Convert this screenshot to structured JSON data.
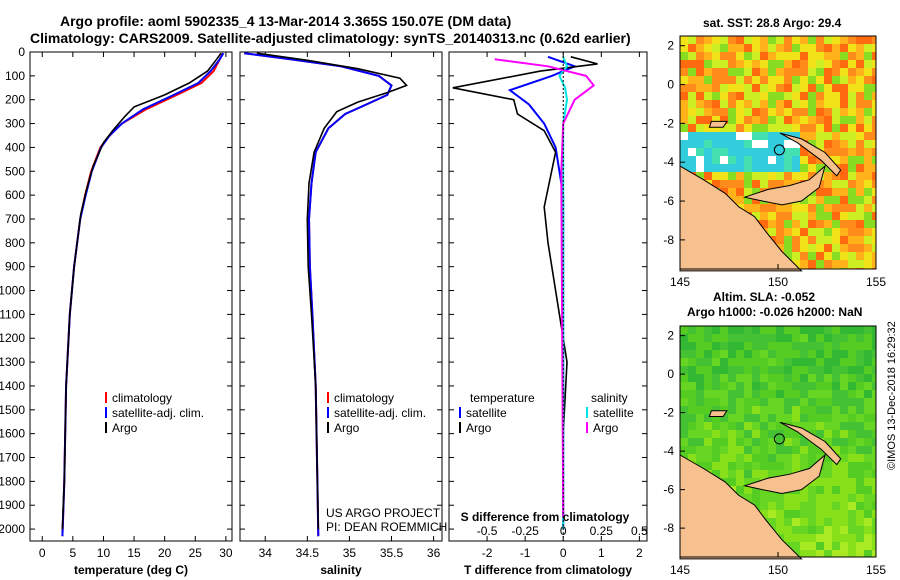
{
  "header": {
    "title_line1": "Argo profile: aoml 5902335_4 13-Mar-2014 3.365S 150.07E (DM data)",
    "title_line2": "Climatology: CARS2009. Satellite-adjusted climatology: synTS_20140313.nc (0.62d earlier)"
  },
  "colors": {
    "climatology": "#ff0000",
    "satellite": "#0000ff",
    "argo": "#000000",
    "sat_salinity": "#00e5e5",
    "argo_salinity": "#ff00ff",
    "land": "#f7c08f"
  },
  "credits": {
    "project": "US ARGO PROJECT",
    "pi": "PI: DEAN ROEMMICH",
    "stamp": "©IMOS 13-Dec-2018 16:29:32"
  },
  "chart_data": [
    {
      "type": "line",
      "id": "temperature",
      "xlabel": "temperature (deg C)",
      "ylabel": "",
      "xlim": [
        -2,
        31
      ],
      "ylim": [
        2050,
        0
      ],
      "xticks": [
        0,
        5,
        10,
        15,
        20,
        25,
        30
      ],
      "yticks": [
        0,
        100,
        200,
        300,
        400,
        500,
        600,
        700,
        800,
        900,
        1000,
        1100,
        1200,
        1300,
        1400,
        1500,
        1600,
        1700,
        1800,
        1900,
        2000
      ],
      "legend": [
        "climatology",
        "satellite-adj. clim.",
        "Argo"
      ],
      "series": [
        {
          "name": "climatology",
          "color": "#ff0000",
          "x": [
            29.5,
            29,
            28,
            26,
            22,
            17,
            13,
            11,
            9.5,
            8,
            7,
            6.2,
            5.2,
            4.5,
            3.9,
            3.6,
            3.3
          ],
          "y": [
            5,
            30,
            80,
            130,
            180,
            240,
            300,
            350,
            400,
            500,
            600,
            700,
            900,
            1100,
            1400,
            1800,
            2030
          ]
        },
        {
          "name": "satellite-adj. clim.",
          "color": "#0000ff",
          "x": [
            29.6,
            29,
            27.5,
            25.5,
            21.5,
            16.5,
            13,
            11,
            9.6,
            8.1,
            7.1,
            6.2,
            5.2,
            4.5,
            3.9,
            3.6,
            3.3
          ],
          "y": [
            5,
            30,
            80,
            130,
            180,
            240,
            300,
            350,
            400,
            500,
            600,
            700,
            900,
            1100,
            1400,
            1800,
            2030
          ]
        },
        {
          "name": "Argo",
          "color": "#000000",
          "x": [
            29.2,
            28.5,
            27,
            24,
            20,
            15,
            13.5,
            11.5,
            10,
            8.3,
            7.2,
            6.3,
            5.2,
            4.5,
            3.9,
            3.6,
            3.3
          ],
          "y": [
            5,
            30,
            80,
            130,
            180,
            230,
            270,
            330,
            380,
            480,
            580,
            680,
            900,
            1100,
            1400,
            1800,
            2000
          ]
        }
      ]
    },
    {
      "type": "line",
      "id": "salinity",
      "xlabel": "salinity",
      "xlim": [
        33.7,
        36.1
      ],
      "ylim": [
        2050,
        0
      ],
      "xticks": [
        34,
        34.5,
        35,
        35.5,
        36
      ],
      "legend": [
        "climatology",
        "satellite-adj. clim.",
        "Argo"
      ],
      "series": [
        {
          "name": "climatology",
          "color": "#ff0000",
          "x": [
            33.75,
            34.3,
            34.9,
            35.35,
            35.5,
            35.45,
            35.2,
            34.95,
            34.75,
            34.6,
            34.55,
            34.52,
            34.53,
            34.56,
            34.6,
            34.62,
            34.63
          ],
          "y": [
            5,
            30,
            60,
            100,
            140,
            180,
            220,
            260,
            320,
            420,
            550,
            700,
            900,
            1100,
            1400,
            1800,
            2030
          ]
        },
        {
          "name": "satellite-adj. clim.",
          "color": "#0000ff",
          "x": [
            33.75,
            34.3,
            34.9,
            35.35,
            35.5,
            35.45,
            35.2,
            34.95,
            34.75,
            34.6,
            34.55,
            34.52,
            34.53,
            34.56,
            34.6,
            34.62,
            34.63
          ],
          "y": [
            5,
            30,
            60,
            100,
            140,
            180,
            220,
            260,
            320,
            420,
            550,
            700,
            900,
            1100,
            1400,
            1800,
            2030
          ]
        },
        {
          "name": "Argo",
          "color": "#000000",
          "x": [
            33.9,
            34.5,
            35.1,
            35.6,
            35.68,
            35.45,
            35.1,
            34.85,
            34.7,
            34.58,
            34.52,
            34.5,
            34.51,
            34.55,
            34.6,
            34.62,
            34.63
          ],
          "y": [
            5,
            35,
            70,
            110,
            140,
            170,
            210,
            250,
            320,
            420,
            550,
            700,
            900,
            1100,
            1400,
            1800,
            2000
          ]
        }
      ]
    },
    {
      "type": "line",
      "id": "differences",
      "xlabel": "T difference from climatology",
      "xlabel_top": "S difference from climatology",
      "xlim": [
        -3,
        2.2
      ],
      "ylim": [
        2050,
        0
      ],
      "xticks": [
        -2,
        -1,
        0,
        1,
        2
      ],
      "xticks_top": [
        "-0.5",
        "-0.25",
        "0",
        "0.25",
        "0.5"
      ],
      "legend_left_title": "temperature",
      "legend_right_title": "salinity",
      "legend_left": [
        "satellite",
        "Argo"
      ],
      "legend_right": [
        "satellite",
        "Argo"
      ],
      "series": [
        {
          "name": "T satellite",
          "color": "#0000ff",
          "x": [
            -0.4,
            0.3,
            -0.3,
            -1.4,
            -0.9,
            -0.5,
            -0.2,
            0,
            0
          ],
          "y": [
            20,
            60,
            100,
            160,
            220,
            300,
            400,
            600,
            2000
          ]
        },
        {
          "name": "T Argo",
          "color": "#000000",
          "x": [
            0.2,
            0.9,
            -0.6,
            -2.9,
            -1.3,
            -1.2,
            -0.5,
            -0.2,
            -0.5,
            -0.4,
            -0.2,
            0.1,
            0,
            0
          ],
          "y": [
            20,
            50,
            80,
            150,
            200,
            260,
            330,
            420,
            650,
            800,
            1000,
            1300,
            1600,
            1950
          ]
        },
        {
          "name": "S satellite",
          "color": "#00e5e5",
          "x": [
            0,
            0.1,
            -0.1,
            0.05,
            0.1,
            0,
            0,
            0
          ],
          "y": [
            20,
            60,
            100,
            150,
            200,
            300,
            600,
            2000
          ]
        },
        {
          "name": "S Argo",
          "color": "#ff00ff",
          "x": [
            -1.8,
            -0.4,
            0.6,
            0.8,
            0.3,
            0,
            -0.05,
            0
          ],
          "y": [
            30,
            60,
            100,
            140,
            200,
            300,
            500,
            1950
          ]
        }
      ]
    },
    {
      "type": "heatmap",
      "id": "sst_map",
      "title": "sat. SST: 28.8 Argo: 29.4",
      "xlim": [
        145,
        155
      ],
      "ylim": [
        -9.5,
        2.5
      ],
      "xticks": [
        145,
        150,
        155
      ],
      "yticks": [
        2,
        0,
        -2,
        -4,
        -6,
        -8
      ],
      "marker": {
        "lon": 150.07,
        "lat": -3.365
      }
    },
    {
      "type": "heatmap",
      "id": "sla_map",
      "title": "Altim. SLA: -0.052",
      "subtitle": "Argo h1000: -0.026 h2000: NaN",
      "xlim": [
        145,
        155
      ],
      "ylim": [
        -9.5,
        2.5
      ],
      "xticks": [
        145,
        150,
        155
      ],
      "yticks": [
        2,
        0,
        -2,
        -4,
        -6,
        -8
      ],
      "marker": {
        "lon": 150.07,
        "lat": -3.365
      }
    }
  ]
}
